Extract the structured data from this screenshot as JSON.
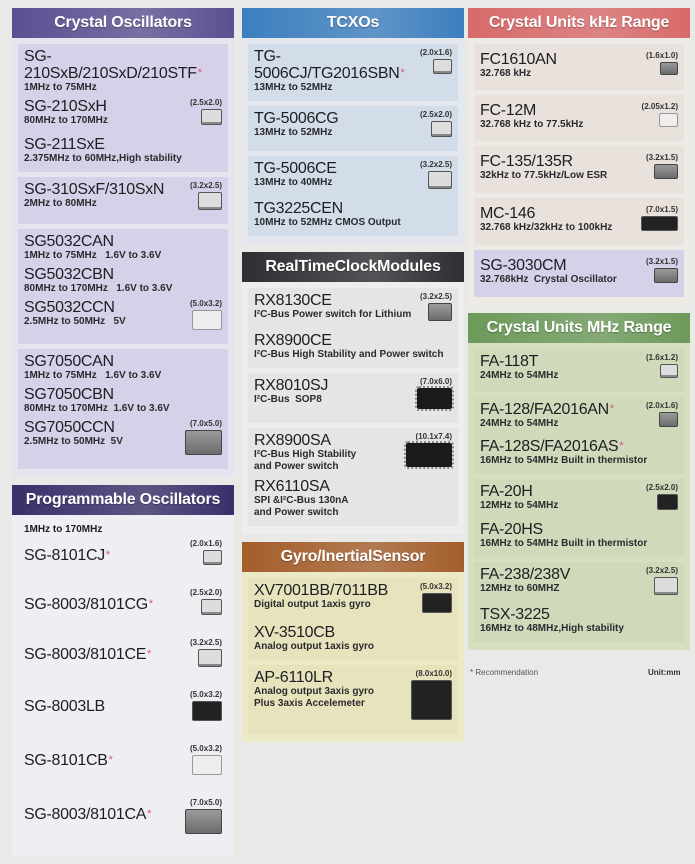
{
  "columns": [
    [
      {
        "title": "Crystal Oscillators",
        "header_color": "#5b5092",
        "body_color": "#e6e4ee",
        "group_color": "#d6d1e8",
        "groups": [
          {
            "items": [
              {
                "name": "SG-210SxB/210SxD/210STF",
                "desc": "1MHz to 75MHz",
                "rec": true
              },
              {
                "name": "SG-210SxH",
                "desc": "80MHz to 170MHz",
                "package": {
                  "size": "(2.5x2.0)",
                  "chip": "light"
                }
              },
              {
                "name": "SG-211SxE",
                "desc": "2.375MHz to 60MHz,High stability"
              }
            ]
          },
          {
            "items": [
              {
                "name": "SG-310SxF/310SxN",
                "desc": "2MHz to 80MHz",
                "package": {
                  "size": "(3.2x2.5)",
                  "chip": "light"
                }
              }
            ]
          },
          {
            "items": [
              {
                "name": "SG5032CAN",
                "desc": "1MHz to 75MHz   1.6V to 3.6V"
              },
              {
                "name": "SG5032CBN",
                "desc": "80MHz to 170MHz   1.6V to 3.6V"
              },
              {
                "name": "SG5032CCN",
                "desc": "2.5MHz to 50MHz   5V",
                "package": {
                  "size": "(5.0x3.2)",
                  "chip": "flat"
                }
              }
            ]
          },
          {
            "items": [
              {
                "name": "SG7050CAN",
                "desc": "1MHz to 75MHz   1.6V to 3.6V"
              },
              {
                "name": "SG7050CBN",
                "desc": "80MHz to 170MHz  1.6V to 3.6V"
              },
              {
                "name": "SG7050CCN",
                "desc": "2.5MHz to 50MHz  5V",
                "package": {
                  "size": "(7.0x5.0)",
                  "chip": "metal"
                }
              }
            ]
          }
        ]
      },
      {
        "title": "Programmable Oscillators",
        "subtitle": "1MHz to 170MHz",
        "header_color": "#3b2f6b",
        "body_color": "#efeef3",
        "group_color": "transparent",
        "groups": [
          {
            "items": [
              {
                "name": "SG-8101CJ",
                "rec": true,
                "package": {
                  "size": "(2.0x1.6)",
                  "chip": "light"
                }
              }
            ]
          },
          {
            "items": [
              {
                "name": "SG-8003/8101CG",
                "rec": true,
                "package": {
                  "size": "(2.5x2.0)",
                  "chip": "light"
                }
              }
            ]
          },
          {
            "items": [
              {
                "name": "SG-8003/8101CE",
                "rec": true,
                "package": {
                  "size": "(3.2x2.5)",
                  "chip": "light"
                }
              }
            ]
          },
          {
            "items": [
              {
                "name": "SG-8003LB",
                "package": {
                  "size": "(5.0x3.2)",
                  "chip": "dark"
                }
              }
            ]
          },
          {
            "items": [
              {
                "name": "SG-8101CB",
                "rec": true,
                "package": {
                  "size": "(5.0x3.2)",
                  "chip": "flat"
                }
              }
            ]
          },
          {
            "items": [
              {
                "name": "SG-8003/8101CA",
                "rec": true,
                "package": {
                  "size": "(7.0x5.0)",
                  "chip": "metal"
                }
              }
            ]
          }
        ]
      }
    ],
    [
      {
        "title": "TCXOs",
        "header_color": "#3c7fbf",
        "body_color": "#e4e8ee",
        "group_color": "#d3dde9",
        "groups": [
          {
            "items": [
              {
                "name": "TG-5006CJ/TG2016SBN",
                "desc": "13MHz to 52MHz",
                "rec": true,
                "package": {
                  "size": "(2.0x1.6)",
                  "chip": "light"
                }
              }
            ]
          },
          {
            "items": [
              {
                "name": "TG-5006CG",
                "desc": "13MHz to 52MHz",
                "package": {
                  "size": "(2.5x2.0)",
                  "chip": "light"
                }
              }
            ]
          },
          {
            "items": [
              {
                "name": "TG-5006CE",
                "desc": "13MHz to 40MHz",
                "package": {
                  "size": "(3.2x2.5)",
                  "chip": "light"
                }
              },
              {
                "name": "TG3225CEN",
                "desc": "10MHz to 52MHz CMOS Output"
              }
            ]
          }
        ]
      },
      {
        "title": "RealTimeClockModules",
        "header_color": "#2e2e33",
        "body_color": "#eeeeec",
        "group_color": "#e5e5e3",
        "groups": [
          {
            "items": [
              {
                "name": "RX8130CE",
                "desc": "I²C-Bus Power switch for Lithium",
                "package": {
                  "size": "(3.2x2.5)",
                  "chip": "metal"
                }
              },
              {
                "name": "RX8900CE",
                "desc": "I²C-Bus High Stability and Power switch"
              }
            ]
          },
          {
            "items": [
              {
                "name": "RX8010SJ",
                "desc": "I²C-Bus  SOP8",
                "package": {
                  "size": "(7.0x6.0)",
                  "chip": "soic"
                }
              }
            ]
          },
          {
            "items": [
              {
                "name": "RX8900SA",
                "desc": "I²C-Bus High Stability\nand Power switch",
                "package": {
                  "size": "(10.1x7.4)",
                  "chip": "soic"
                }
              },
              {
                "name": "RX6110SA",
                "desc": "SPI &I²C-Bus 130nA\nand Power switch"
              }
            ]
          }
        ]
      },
      {
        "title": "Gyro/InertialSensor",
        "header_color": "#a45e2c",
        "body_color": "#ece9c6",
        "group_color": "#e7e3bd",
        "groups": [
          {
            "items": [
              {
                "name": "XV7001BB/7011BB",
                "desc": "Digital output 1axis gyro",
                "package": {
                  "size": "(5.0x3.2)",
                  "chip": "dark"
                }
              },
              {
                "name": "XV-3510CB",
                "desc": "Analog output 1axis gyro"
              }
            ]
          },
          {
            "items": [
              {
                "name": "AP-6110LR",
                "desc": "Analog output 3axis gyro\nPlus 3axis Accelemeter",
                "package": {
                  "size": "(8.0x10.0)",
                  "chip": "dark"
                }
              }
            ]
          }
        ]
      }
    ],
    [
      {
        "title": "Crystal Units kHz Range",
        "header_color": "#d86a6a",
        "body_color": "#eeeae6",
        "group_color": "#e9e1dc",
        "groups": [
          {
            "items": [
              {
                "name": "FC1610AN",
                "desc": "32.768 kHz",
                "package": {
                  "size": "(1.6x1.0)",
                  "chip": "metal"
                }
              }
            ]
          },
          {
            "items": [
              {
                "name": "FC-12M",
                "desc": "32.768 kHz to 77.5kHz",
                "package": {
                  "size": "(2.05x1.2)",
                  "chip": "flat"
                }
              }
            ]
          },
          {
            "items": [
              {
                "name": "FC-135/135R",
                "desc": "32kHz to 77.5kHz/Low ESR",
                "package": {
                  "size": "(3.2x1.5)",
                  "chip": "metal"
                }
              }
            ]
          },
          {
            "items": [
              {
                "name": "MC-146",
                "desc": "32.768 kHz/32kHz to 100kHz",
                "package": {
                  "size": "(7.0x1.5)",
                  "chip": "dark"
                }
              }
            ]
          },
          {
            "items": [
              {
                "name": "SG-3030CM",
                "desc": "32.768kHz  Crystal Oscillator",
                "package": {
                  "size": "(3.2x1.5)",
                  "chip": "metal"
                }
              }
            ],
            "lavender": true
          }
        ]
      },
      {
        "title": "Crystal Units MHz Range",
        "header_color": "#6c9a5a",
        "body_color": "#d6dfbf",
        "group_color": "#d0daba",
        "groups": [
          {
            "items": [
              {
                "name": "FA-118T",
                "desc": "24MHz to 54MHz",
                "package": {
                  "size": "(1.6x1.2)",
                  "chip": "light"
                }
              }
            ]
          },
          {
            "items": [
              {
                "name": "FA-128/FA2016AN",
                "desc": "24MHz to 54MHz",
                "rec": true,
                "package": {
                  "size": "(2.0x1.6)",
                  "chip": "metal"
                }
              },
              {
                "name": "FA-128S/FA2016AS",
                "desc": "16MHz to 54MHz Built in thermistor",
                "rec": true
              }
            ]
          },
          {
            "items": [
              {
                "name": "FA-20H",
                "desc": "12MHz to 54MHz",
                "package": {
                  "size": "(2.5x2.0)",
                  "chip": "dark"
                }
              },
              {
                "name": "FA-20HS",
                "desc": "16MHz to 54MHz Built in thermistor"
              }
            ]
          },
          {
            "items": [
              {
                "name": "FA-238/238V",
                "desc": "12MHz to 60MHZ",
                "package": {
                  "size": "(3.2x2.5)",
                  "chip": "light"
                }
              },
              {
                "name": "TSX-3225",
                "desc": "16MHz to 48MHz,High stability"
              }
            ]
          }
        ]
      }
    ]
  ],
  "footer": {
    "recommendation": "* Recommendation",
    "unit": "Unit:mm"
  },
  "colors": {
    "recommendation_star": "#d9547a",
    "lavender_group": "#d4d2e9"
  }
}
